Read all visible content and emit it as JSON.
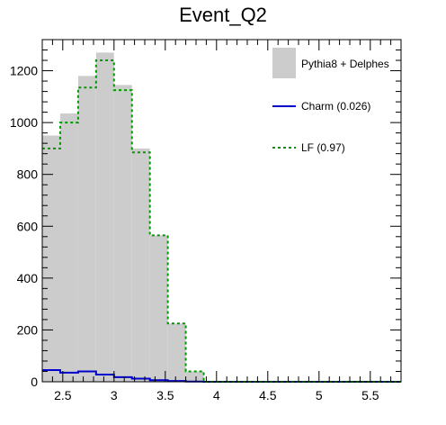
{
  "chart_data": {
    "type": "bar",
    "title": "Event_Q2",
    "xlabel": "",
    "ylabel": "",
    "xlim": [
      2.3,
      5.8
    ],
    "ylim": [
      0,
      1320
    ],
    "grid": false,
    "legend_position": "top-right",
    "x_ticks": [
      2.5,
      3,
      3.5,
      4,
      4.5,
      5,
      5.5
    ],
    "x_tick_labels": [
      "2.5",
      "3",
      "3.5",
      "4",
      "4.5",
      "5",
      "5.5"
    ],
    "y_ticks": [
      0,
      200,
      400,
      600,
      800,
      1000,
      1200
    ],
    "y_tick_labels": [
      "0",
      "200",
      "400",
      "600",
      "800",
      "1000",
      "1200"
    ],
    "bin_edges": [
      2.3,
      2.475,
      2.65,
      2.825,
      3.0,
      3.175,
      3.35,
      3.525,
      3.7,
      3.875,
      4.05,
      4.225,
      4.4,
      4.575,
      4.75,
      4.925,
      5.1,
      5.275,
      5.45,
      5.625,
      5.8
    ],
    "series": [
      {
        "name": "Pythia8 + Delphes",
        "style": "filled",
        "color": "#cccccc",
        "values": [
          950,
          1035,
          1180,
          1270,
          1145,
          900,
          565,
          225,
          40,
          0,
          0,
          0,
          0,
          0,
          0,
          0,
          0,
          0,
          0,
          0
        ]
      },
      {
        "name": "Charm (0.026)",
        "style": "solid",
        "color": "#0000cc",
        "values": [
          45,
          35,
          40,
          28,
          18,
          12,
          6,
          3,
          1,
          0,
          0,
          0,
          0,
          0,
          0,
          0,
          0,
          0,
          0,
          0
        ]
      },
      {
        "name": "LF (0.97)",
        "style": "dotted",
        "color": "#009900",
        "values": [
          900,
          1000,
          1135,
          1240,
          1125,
          885,
          565,
          225,
          40,
          0,
          0,
          0,
          0,
          0,
          0,
          0,
          0,
          0,
          0,
          0
        ]
      }
    ]
  }
}
